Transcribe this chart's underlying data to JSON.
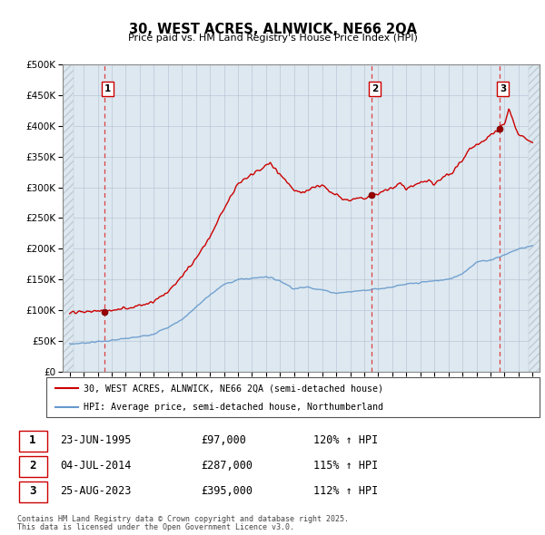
{
  "title": "30, WEST ACRES, ALNWICK, NE66 2QA",
  "subtitle": "Price paid vs. HM Land Registry's House Price Index (HPI)",
  "legend_line1": "30, WEST ACRES, ALNWICK, NE66 2QA (semi-detached house)",
  "legend_line2": "HPI: Average price, semi-detached house, Northumberland",
  "footnote1": "Contains HM Land Registry data © Crown copyright and database right 2025.",
  "footnote2": "This data is licensed under the Open Government Licence v3.0.",
  "transactions": [
    {
      "num": 1,
      "date": "23-JUN-1995",
      "price": "£97,000",
      "hpi": "120% ↑ HPI",
      "year": 1995.47
    },
    {
      "num": 2,
      "date": "04-JUL-2014",
      "price": "£287,000",
      "hpi": "115% ↑ HPI",
      "year": 2014.5
    },
    {
      "num": 3,
      "date": "25-AUG-2023",
      "price": "£395,000",
      "hpi": "112% ↑ HPI",
      "year": 2023.65
    }
  ],
  "sale_prices": [
    97000,
    287000,
    395000
  ],
  "red_color": "#cc0000",
  "blue_color": "#6699cc",
  "bg_color": "#dde8f0",
  "hatch_color": "#c0ccd4",
  "grid_color": "#aabbcc",
  "dashed_color": "#dd2222",
  "ylim": [
    0,
    500000
  ],
  "yticks": [
    0,
    50000,
    100000,
    150000,
    200000,
    250000,
    300000,
    350000,
    400000,
    450000,
    500000
  ],
  "xlim_start": 1992.5,
  "xlim_end": 2026.5,
  "xticks": [
    1993,
    1994,
    1995,
    1996,
    1997,
    1998,
    1999,
    2000,
    2001,
    2002,
    2003,
    2004,
    2005,
    2006,
    2007,
    2008,
    2009,
    2010,
    2011,
    2012,
    2013,
    2014,
    2015,
    2016,
    2017,
    2018,
    2019,
    2020,
    2021,
    2022,
    2023,
    2024,
    2025,
    2026
  ]
}
